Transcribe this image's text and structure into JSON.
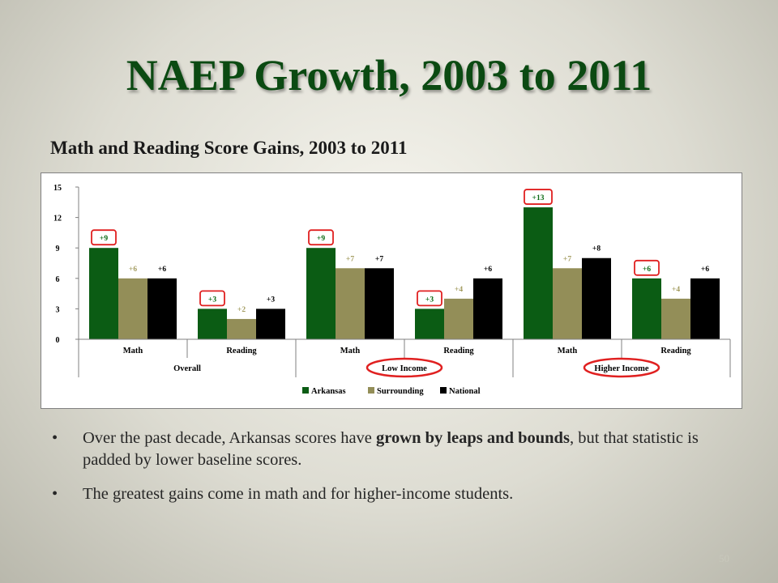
{
  "slide": {
    "title": "NAEP Growth, 2003 to 2011",
    "subtitle": "Math and Reading Score Gains, 2003 to 2011",
    "page_number": "50"
  },
  "bullets": [
    {
      "before": "Over the past decade, Arkansas scores have ",
      "emphasis": "grown by leaps and bounds",
      "after": ", but that statistic is padded by lower baseline scores."
    },
    {
      "before": "The greatest gains come in math and for higher-income students.",
      "emphasis": "",
      "after": ""
    }
  ],
  "chart_data": {
    "type": "bar",
    "title": "",
    "xlabel": "",
    "ylabel": "",
    "ylim": [
      0,
      15
    ],
    "yticks": [
      0,
      3,
      6,
      9,
      12,
      15
    ],
    "grid": false,
    "legend_position": "bottom",
    "categories": [
      "Math",
      "Reading",
      "Math",
      "Reading",
      "Math",
      "Reading"
    ],
    "groups": [
      {
        "label": "Overall",
        "span": 2
      },
      {
        "label": "Low Income",
        "span": 2
      },
      {
        "label": "Higher Income",
        "span": 2
      }
    ],
    "series": [
      {
        "name": "Arkansas",
        "color": "#0b5c14",
        "label_color": "#0b6a14",
        "values": [
          9,
          3,
          9,
          3,
          13,
          6
        ],
        "labels": [
          "+9",
          "+3",
          "+9",
          "+3",
          "+13",
          "+6"
        ]
      },
      {
        "name": "Surrounding",
        "color": "#938e58",
        "label_color": "#a39c60",
        "values": [
          6,
          2,
          7,
          4,
          7,
          4
        ],
        "labels": [
          "+6",
          "+2",
          "+7",
          "+4",
          "+7",
          "+4"
        ]
      },
      {
        "name": "National",
        "color": "#000000",
        "label_color": "#000000",
        "values": [
          6,
          3,
          7,
          6,
          8,
          6
        ],
        "labels": [
          "+6",
          "+3",
          "+7",
          "+6",
          "+8",
          "+6"
        ]
      }
    ],
    "highlight": {
      "color": "#e02020",
      "data_labels": [
        {
          "series": 0,
          "index": 0
        },
        {
          "series": 0,
          "index": 1
        },
        {
          "series": 0,
          "index": 2
        },
        {
          "series": 0,
          "index": 3
        },
        {
          "series": 0,
          "index": 4
        },
        {
          "series": 0,
          "index": 5
        }
      ],
      "group_labels": [
        1,
        2
      ]
    }
  }
}
